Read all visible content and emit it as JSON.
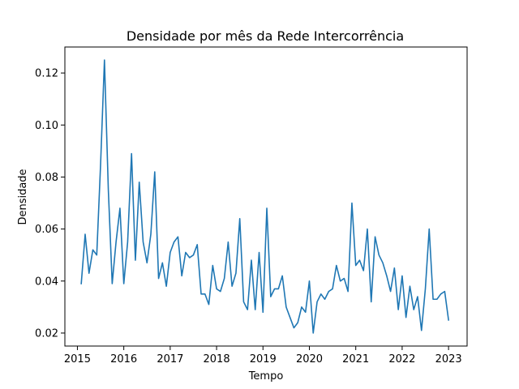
{
  "chart_data": {
    "type": "line",
    "title": "Densidade por mês da Rede Intercorrência",
    "xlabel": "Tempo",
    "ylabel": "Densidade",
    "xlim": [
      2014.73,
      2023.4
    ],
    "ylim": [
      0.015,
      0.13
    ],
    "x_ticks": [
      2015,
      2016,
      2017,
      2018,
      2019,
      2020,
      2021,
      2022,
      2023
    ],
    "x_tick_labels": [
      "2015",
      "2016",
      "2017",
      "2018",
      "2019",
      "2020",
      "2021",
      "2022",
      "2023"
    ],
    "y_ticks": [
      0.02,
      0.04,
      0.06,
      0.08,
      0.1,
      0.12
    ],
    "y_tick_labels": [
      "0.02",
      "0.04",
      "0.06",
      "0.08",
      "0.10",
      "0.12"
    ],
    "grid": false,
    "series": [
      {
        "color": "#1f77b4",
        "x": [
          2015.083,
          2015.167,
          2015.25,
          2015.333,
          2015.417,
          2015.5,
          2015.583,
          2015.667,
          2015.75,
          2015.833,
          2015.917,
          2016.0,
          2016.083,
          2016.167,
          2016.25,
          2016.333,
          2016.417,
          2016.5,
          2016.583,
          2016.667,
          2016.75,
          2016.833,
          2016.917,
          2017.0,
          2017.083,
          2017.167,
          2017.25,
          2017.333,
          2017.417,
          2017.5,
          2017.583,
          2017.667,
          2017.75,
          2017.833,
          2017.917,
          2018.0,
          2018.083,
          2018.167,
          2018.25,
          2018.333,
          2018.417,
          2018.5,
          2018.583,
          2018.667,
          2018.75,
          2018.833,
          2018.917,
          2019.0,
          2019.083,
          2019.167,
          2019.25,
          2019.333,
          2019.417,
          2019.5,
          2019.583,
          2019.667,
          2019.75,
          2019.833,
          2019.917,
          2020.0,
          2020.083,
          2020.167,
          2020.25,
          2020.333,
          2020.417,
          2020.5,
          2020.583,
          2020.667,
          2020.75,
          2020.833,
          2020.917,
          2021.0,
          2021.083,
          2021.167,
          2021.25,
          2021.333,
          2021.417,
          2021.5,
          2021.583,
          2021.667,
          2021.75,
          2021.833,
          2021.917,
          2022.0,
          2022.083,
          2022.167,
          2022.25,
          2022.333,
          2022.417,
          2022.5,
          2022.583,
          2022.667,
          2022.75,
          2022.833,
          2022.917,
          2023.0
        ],
        "y": [
          0.039,
          0.058,
          0.043,
          0.052,
          0.05,
          0.085,
          0.125,
          0.075,
          0.039,
          0.055,
          0.068,
          0.039,
          0.055,
          0.089,
          0.048,
          0.078,
          0.055,
          0.047,
          0.058,
          0.082,
          0.041,
          0.047,
          0.038,
          0.051,
          0.055,
          0.057,
          0.042,
          0.051,
          0.049,
          0.05,
          0.054,
          0.035,
          0.035,
          0.031,
          0.046,
          0.037,
          0.036,
          0.041,
          0.055,
          0.038,
          0.043,
          0.064,
          0.032,
          0.029,
          0.048,
          0.029,
          0.051,
          0.028,
          0.068,
          0.034,
          0.037,
          0.037,
          0.042,
          0.03,
          0.026,
          0.022,
          0.024,
          0.03,
          0.028,
          0.04,
          0.02,
          0.032,
          0.035,
          0.033,
          0.036,
          0.037,
          0.046,
          0.04,
          0.041,
          0.036,
          0.07,
          0.046,
          0.048,
          0.044,
          0.06,
          0.032,
          0.057,
          0.05,
          0.047,
          0.042,
          0.036,
          0.045,
          0.029,
          0.042,
          0.026,
          0.038,
          0.029,
          0.034,
          0.021,
          0.037,
          0.06,
          0.033,
          0.033,
          0.035,
          0.036,
          0.025
        ]
      }
    ]
  }
}
